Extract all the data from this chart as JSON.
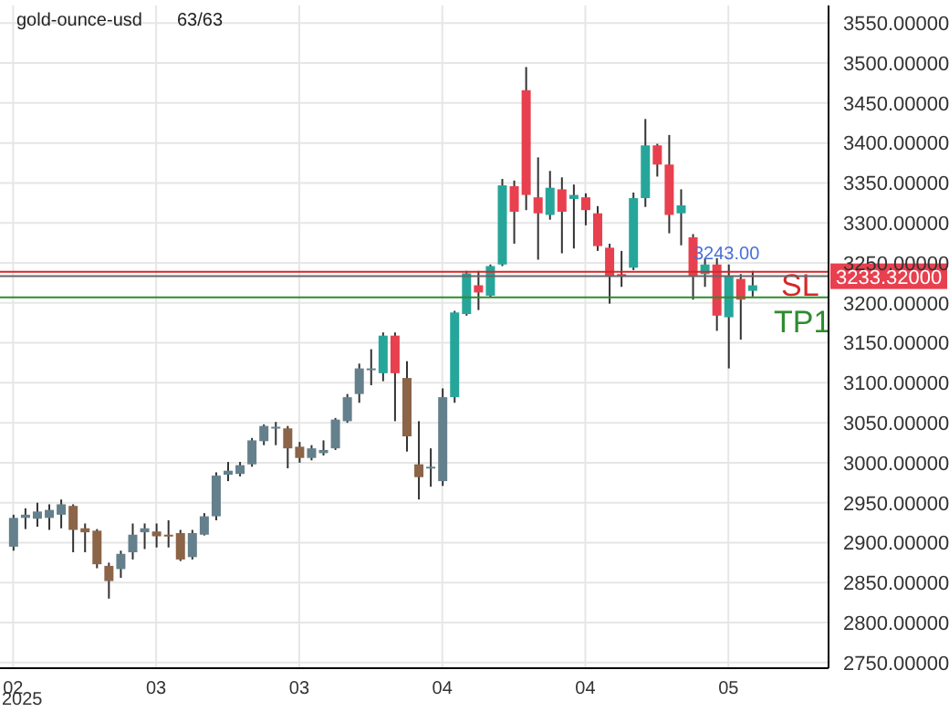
{
  "chart_data": {
    "type": "candlestick",
    "title": "gold-ounce-usd",
    "subtitle": "63/63",
    "categories": [
      "02",
      null,
      null,
      null,
      null,
      null,
      null,
      null,
      null,
      null,
      null,
      null,
      "03",
      null,
      null,
      null,
      null,
      null,
      null,
      null,
      null,
      null,
      null,
      null,
      "03",
      null,
      null,
      null,
      null,
      null,
      null,
      null,
      null,
      null,
      null,
      null,
      "04",
      null,
      null,
      null,
      null,
      null,
      null,
      null,
      null,
      null,
      null,
      null,
      "04",
      null,
      null,
      null,
      null,
      null,
      null,
      null,
      null,
      null,
      null,
      null,
      "05",
      null,
      null
    ],
    "ohlc": [
      [
        2895,
        2935,
        2890,
        2931
      ],
      [
        2931,
        2943,
        2917,
        2935
      ],
      [
        2930,
        2950,
        2920,
        2939
      ],
      [
        2931,
        2948,
        2916,
        2941
      ],
      [
        2935,
        2954,
        2918,
        2948
      ],
      [
        2946,
        2948,
        2888,
        2916
      ],
      [
        2918,
        2924,
        2888,
        2913
      ],
      [
        2915,
        2917,
        2868,
        2873
      ],
      [
        2871,
        2875,
        2830,
        2852
      ],
      [
        2867,
        2890,
        2856,
        2886
      ],
      [
        2888,
        2924,
        2879,
        2910
      ],
      [
        2913,
        2924,
        2892,
        2918
      ],
      [
        2914,
        2924,
        2894,
        2908
      ],
      [
        2910,
        2928,
        2894,
        2908
      ],
      [
        2912,
        2916,
        2877,
        2879
      ],
      [
        2882,
        2916,
        2879,
        2912
      ],
      [
        2910,
        2937,
        2909,
        2933
      ],
      [
        2933,
        2988,
        2928,
        2984
      ],
      [
        2985,
        3001,
        2977,
        2990
      ],
      [
        2986,
        3001,
        2983,
        2997
      ],
      [
        2998,
        3031,
        2995,
        3028
      ],
      [
        3027,
        3048,
        3022,
        3046
      ],
      [
        3044,
        3051,
        3022,
        3045
      ],
      [
        3043,
        3046,
        2993,
        3018
      ],
      [
        3020,
        3026,
        3000,
        3006
      ],
      [
        3006,
        3022,
        3003,
        3018
      ],
      [
        3012,
        3028,
        3009,
        3016
      ],
      [
        3018,
        3056,
        3016,
        3054
      ],
      [
        3052,
        3086,
        3050,
        3082
      ],
      [
        3086,
        3124,
        3075,
        3118
      ],
      [
        3116,
        3142,
        3097,
        3118
      ],
      [
        3112,
        3163,
        3102,
        3159
      ],
      [
        3159,
        3163,
        3052,
        3112
      ],
      [
        3106,
        3127,
        3014,
        3033
      ],
      [
        2998,
        3052,
        2954,
        2982
      ],
      [
        2993,
        3018,
        2970,
        2995
      ],
      [
        2977,
        3093,
        2971,
        3082
      ],
      [
        3082,
        3190,
        3075,
        3188
      ],
      [
        3186,
        3240,
        3184,
        3237
      ],
      [
        3222,
        3240,
        3191,
        3213
      ],
      [
        3209,
        3248,
        3207,
        3246
      ],
      [
        3248,
        3355,
        3246,
        3347
      ],
      [
        3346,
        3353,
        3274,
        3314
      ],
      [
        3466,
        3495,
        3316,
        3335
      ],
      [
        3332,
        3382,
        3254,
        3312
      ],
      [
        3310,
        3365,
        3304,
        3344
      ],
      [
        3342,
        3357,
        3262,
        3314
      ],
      [
        3330,
        3348,
        3268,
        3335
      ],
      [
        3332,
        3337,
        3297,
        3316
      ],
      [
        3312,
        3321,
        3265,
        3271
      ],
      [
        3269,
        3274,
        3199,
        3234
      ],
      [
        3236,
        3265,
        3220,
        3233
      ],
      [
        3244,
        3338,
        3241,
        3331
      ],
      [
        3331,
        3430,
        3320,
        3397
      ],
      [
        3397,
        3399,
        3358,
        3373
      ],
      [
        3373,
        3410,
        3287,
        3310
      ],
      [
        3312,
        3342,
        3272,
        3322
      ],
      [
        3282,
        3286,
        3204,
        3234
      ],
      [
        3236,
        3256,
        3220,
        3248
      ],
      [
        3248,
        3256,
        3165,
        3184
      ],
      [
        3182,
        3248,
        3118,
        3233
      ],
      [
        3230,
        3236,
        3154,
        3204
      ],
      [
        3215,
        3240,
        3208,
        3222
      ]
    ],
    "colors": [
      "#64808c",
      "#64808c",
      "#64808c",
      "#64808c",
      "#64808c",
      "#8c6448",
      "#8c6448",
      "#8c6448",
      "#8c6448",
      "#64808c",
      "#64808c",
      "#64808c",
      "#8c6448",
      "#8c6448",
      "#8c6448",
      "#64808c",
      "#64808c",
      "#64808c",
      "#64808c",
      "#64808c",
      "#64808c",
      "#64808c",
      "#64808c",
      "#8c6448",
      "#8c6448",
      "#64808c",
      "#64808c",
      "#64808c",
      "#64808c",
      "#64808c",
      "#64808c",
      "#26a69a",
      "#e8404e",
      "#8c6448",
      "#8c6448",
      "#64808c",
      "#64808c",
      "#26a69a",
      "#26a69a",
      "#e8404e",
      "#26a69a",
      "#26a69a",
      "#e8404e",
      "#e8404e",
      "#e8404e",
      "#26a69a",
      "#e8404e",
      "#26a69a",
      "#e8404e",
      "#e8404e",
      "#e8404e",
      "#e8404e",
      "#26a69a",
      "#26a69a",
      "#e8404e",
      "#e8404e",
      "#26a69a",
      "#e8404e",
      "#26a69a",
      "#e8404e",
      "#26a69a",
      "#e8404e",
      "#26a69a"
    ],
    "ylim": [
      2743,
      3572
    ],
    "yticks": [
      {
        "value": 2750,
        "label": "2750.00000"
      },
      {
        "value": 2800,
        "label": "2800.00000"
      },
      {
        "value": 2850,
        "label": "2850.00000"
      },
      {
        "value": 2900,
        "label": "2900.00000"
      },
      {
        "value": 2950,
        "label": "2950.00000"
      },
      {
        "value": 3000,
        "label": "3000.00000"
      },
      {
        "value": 3050,
        "label": "3050.00000"
      },
      {
        "value": 3100,
        "label": "3100.00000"
      },
      {
        "value": 3150,
        "label": "3150.00000"
      },
      {
        "value": 3200,
        "label": "3200.00000"
      },
      {
        "value": 3250,
        "label": "3250.00000"
      },
      {
        "value": 3300,
        "label": "3300.00000"
      },
      {
        "value": 3350,
        "label": "3350.00000"
      },
      {
        "value": 3400,
        "label": "3400.00000"
      },
      {
        "value": 3450,
        "label": "3450.00000"
      },
      {
        "value": 3500,
        "label": "3500.00000"
      },
      {
        "value": 3550,
        "label": "3550.00000"
      }
    ],
    "grid": true,
    "ref_lines": [
      {
        "axis": "y",
        "value": 3239,
        "label": "SL",
        "color": "#d62728"
      },
      {
        "axis": "y",
        "value": 3233.32,
        "label": "3233.32000",
        "color": "#666666"
      },
      {
        "axis": "y",
        "value": 3207,
        "label": "TP1",
        "color": "#2e8b2e"
      }
    ],
    "annotations": [
      "2025",
      {
        "text": "3243.00",
        "y": 3243
      }
    ]
  }
}
